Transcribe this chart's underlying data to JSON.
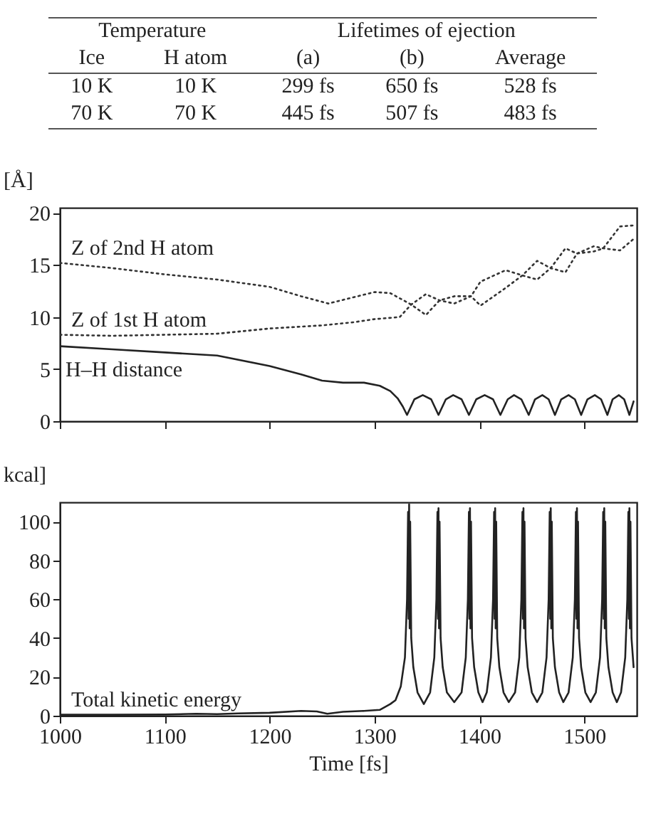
{
  "chart_data": [
    {
      "type": "other",
      "annotations": [
        "Temperature",
        "Lifetimes of ejection"
      ],
      "categories": [
        "Ice",
        "H atom",
        "(a)",
        "(b)",
        "Average"
      ],
      "cell_labels": [
        [
          "10 K",
          "10 K",
          "299 fs",
          "650 fs",
          "528 fs"
        ],
        [
          "70 K",
          "70 K",
          "445 fs",
          "507 fs",
          "483 fs"
        ]
      ]
    },
    {
      "type": "line",
      "ylabel": "[Å]",
      "xlim": [
        1000,
        1550
      ],
      "xticks": [
        1000,
        1100,
        1200,
        1300,
        1400,
        1500
      ],
      "ylim": [
        0,
        20.5
      ],
      "yticks": [
        0,
        5,
        10,
        15,
        20
      ],
      "tick_labels": "y",
      "grid": false,
      "series": [
        {
          "name": "Z of 2nd H atom",
          "color": "#333333",
          "line_style": "dotted",
          "x": [
            1000,
            1050,
            1100,
            1150,
            1200,
            1230,
            1256,
            1280,
            1300,
            1315,
            1335,
            1349,
            1362,
            1376,
            1392,
            1401,
            1425,
            1441,
            1455,
            1468,
            1482,
            1493,
            1509,
            1518,
            1534,
            1547
          ],
          "values": [
            15.2,
            14.7,
            14.1,
            13.6,
            12.9,
            12.0,
            11.3,
            11.9,
            12.4,
            12.3,
            11.2,
            10.2,
            11.6,
            12.0,
            12.0,
            11.1,
            12.8,
            14.0,
            15.4,
            14.7,
            14.3,
            16.1,
            16.8,
            16.6,
            16.4,
            17.5
          ]
        },
        {
          "name": "Z of 1st H atom",
          "color": "#333333",
          "line_style": "dotted",
          "x": [
            1000,
            1050,
            1100,
            1150,
            1200,
            1250,
            1280,
            1300,
            1324,
            1335,
            1349,
            1362,
            1376,
            1392,
            1401,
            1425,
            1441,
            1455,
            1468,
            1482,
            1493,
            1509,
            1518,
            1534,
            1547
          ],
          "values": [
            8.3,
            8.2,
            8.3,
            8.4,
            8.9,
            9.2,
            9.5,
            9.8,
            10.0,
            11.2,
            12.2,
            11.6,
            11.3,
            12.0,
            13.4,
            14.5,
            14.0,
            13.6,
            14.7,
            16.6,
            16.1,
            16.3,
            16.6,
            18.7,
            18.8
          ]
        },
        {
          "name": "H–H distance",
          "color": "#222222",
          "line_style": "solid",
          "x": [
            1000,
            1050,
            1100,
            1150,
            1200,
            1230,
            1250,
            1270,
            1290,
            1305,
            1315,
            1322,
            1327,
            1331,
            1338,
            1346,
            1354,
            1361,
            1368,
            1375,
            1383,
            1390,
            1397,
            1405,
            1413,
            1420,
            1427,
            1433,
            1440,
            1447,
            1453,
            1460,
            1466,
            1472,
            1478,
            1485,
            1491,
            1497,
            1503,
            1510,
            1516,
            1522,
            1527,
            1533,
            1538,
            1543,
            1547
          ],
          "values": [
            7.2,
            6.9,
            6.6,
            6.3,
            5.3,
            4.5,
            3.9,
            3.7,
            3.7,
            3.4,
            2.9,
            2.2,
            1.4,
            0.6,
            2.1,
            2.5,
            2.1,
            0.6,
            2.1,
            2.5,
            2.1,
            0.6,
            2.1,
            2.5,
            2.1,
            0.6,
            2.1,
            2.5,
            2.1,
            0.6,
            2.1,
            2.5,
            2.1,
            0.6,
            2.1,
            2.5,
            2.1,
            0.6,
            2.1,
            2.5,
            2.1,
            0.6,
            2.1,
            2.5,
            2.1,
            0.6,
            1.9
          ]
        }
      ]
    },
    {
      "type": "line",
      "xlabel": "Time [fs]",
      "ylabel": "kcal]",
      "xlim": [
        1000,
        1550
      ],
      "xticks": [
        1000,
        1100,
        1200,
        1300,
        1400,
        1500
      ],
      "ylim": [
        0,
        110
      ],
      "yticks": [
        0,
        20,
        40,
        60,
        80,
        100
      ],
      "grid": false,
      "series": [
        {
          "name": "Total kinetic energy",
          "color": "#222222",
          "line_style": "solid",
          "x": [
            1000,
            1050,
            1100,
            1130,
            1150,
            1170,
            1200,
            1230,
            1245,
            1255,
            1270,
            1290,
            1305,
            1315,
            1320,
            1325,
            1329,
            1331,
            1332,
            1332.5,
            1333,
            1333.5,
            1334,
            1335,
            1337,
            1341,
            1347,
            1353,
            1357,
            1359,
            1360,
            1360.5,
            1361,
            1361.5,
            1362,
            1363,
            1365,
            1369,
            1376,
            1383,
            1387,
            1389,
            1390,
            1390.5,
            1391,
            1391.5,
            1392,
            1393,
            1395,
            1399,
            1403,
            1407,
            1411,
            1413,
            1414,
            1414.5,
            1415,
            1415.5,
            1416,
            1417,
            1419,
            1423,
            1428,
            1434,
            1438,
            1440,
            1441,
            1441.5,
            1442,
            1442.5,
            1443,
            1444,
            1446,
            1450,
            1455,
            1460,
            1464,
            1466,
            1467,
            1467.5,
            1468,
            1468.5,
            1469,
            1470,
            1472,
            1476,
            1480,
            1485,
            1489,
            1491,
            1492,
            1492.5,
            1493,
            1493.5,
            1494,
            1495,
            1497,
            1501,
            1506,
            1511,
            1515,
            1517,
            1518,
            1518.5,
            1519,
            1519.5,
            1520,
            1521,
            1523,
            1527,
            1531,
            1535,
            1539,
            1541,
            1542,
            1542.5,
            1543,
            1543.5,
            1544,
            1545,
            1547
          ],
          "values": [
            0.5,
            0.5,
            0.6,
            1,
            0.8,
            1.2,
            1.5,
            2.5,
            2.2,
            1,
            2,
            2.5,
            3,
            6,
            8,
            15,
            30,
            60,
            105,
            50,
            109,
            45,
            100,
            40,
            25,
            12,
            6,
            12,
            30,
            60,
            105,
            50,
            107,
            45,
            100,
            40,
            25,
            12,
            7,
            12,
            30,
            60,
            105,
            50,
            107,
            45,
            100,
            40,
            25,
            12,
            7,
            12,
            30,
            60,
            105,
            50,
            107,
            45,
            100,
            40,
            25,
            12,
            7,
            12,
            30,
            60,
            105,
            50,
            107,
            45,
            100,
            40,
            25,
            12,
            7,
            12,
            30,
            60,
            105,
            50,
            107,
            45,
            100,
            40,
            25,
            12,
            7,
            12,
            30,
            60,
            105,
            50,
            107,
            45,
            100,
            40,
            25,
            12,
            7,
            12,
            30,
            60,
            105,
            50,
            107,
            45,
            100,
            40,
            25,
            12,
            7,
            12,
            30,
            60,
            105,
            50,
            107,
            45,
            100,
            40,
            25
          ]
        }
      ]
    }
  ]
}
